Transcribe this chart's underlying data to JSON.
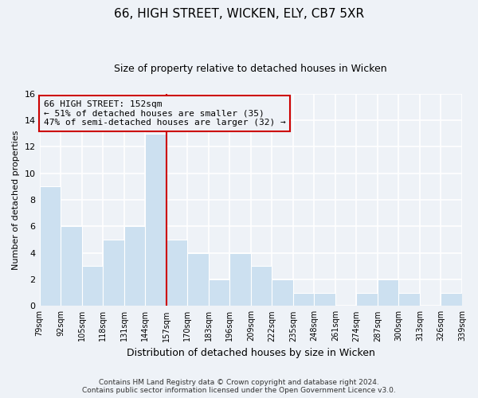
{
  "title": "66, HIGH STREET, WICKEN, ELY, CB7 5XR",
  "subtitle": "Size of property relative to detached houses in Wicken",
  "xlabel": "Distribution of detached houses by size in Wicken",
  "ylabel": "Number of detached properties",
  "bar_color": "#cce0f0",
  "bar_edgecolor": "#ffffff",
  "vline_color": "#cc0000",
  "categories": [
    "79sqm",
    "92sqm",
    "105sqm",
    "118sqm",
    "131sqm",
    "144sqm",
    "157sqm",
    "170sqm",
    "183sqm",
    "196sqm",
    "209sqm",
    "222sqm",
    "235sqm",
    "248sqm",
    "261sqm",
    "274sqm",
    "287sqm",
    "300sqm",
    "313sqm",
    "326sqm",
    "339sqm"
  ],
  "values": [
    9,
    6,
    3,
    5,
    6,
    13,
    5,
    4,
    2,
    4,
    3,
    2,
    1,
    1,
    0,
    1,
    2,
    1,
    0,
    1
  ],
  "ylim": [
    0,
    16
  ],
  "yticks": [
    0,
    2,
    4,
    6,
    8,
    10,
    12,
    14,
    16
  ],
  "annotation_line1": "66 HIGH STREET: 152sqm",
  "annotation_line2": "← 51% of detached houses are smaller (35)",
  "annotation_line3": "47% of semi-detached houses are larger (32) →",
  "annotation_box_edgecolor": "#cc0000",
  "footer_line1": "Contains HM Land Registry data © Crown copyright and database right 2024.",
  "footer_line2": "Contains public sector information licensed under the Open Government Licence v3.0.",
  "background_color": "#eef2f7",
  "grid_color": "#ffffff"
}
